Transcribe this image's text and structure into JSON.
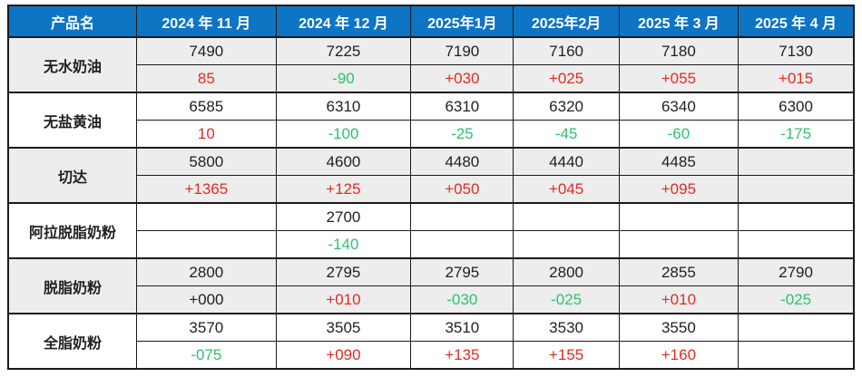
{
  "colors": {
    "header_bg": "#0e74c4",
    "header_text": "#ffffff",
    "band": "#ededed",
    "red": "#e02b22",
    "green": "#2fc170",
    "neutral": "#1f1f1f",
    "border": "#1a1a1a"
  },
  "table": {
    "product_header": "产品名",
    "months": [
      "2024 年 11 月",
      "2024 年 12 月",
      "2025年1月",
      "2025年2月",
      "2025 年 3 月",
      "2025 年 4 月"
    ],
    "products": [
      {
        "name": "无水奶油",
        "prices": [
          "7490",
          "7225",
          "7190",
          "7160",
          "7180",
          "7130"
        ],
        "changes": [
          {
            "text": "85",
            "color": "red"
          },
          {
            "text": "-90",
            "color": "green"
          },
          {
            "text": "+030",
            "color": "red"
          },
          {
            "text": "+025",
            "color": "red"
          },
          {
            "text": "+055",
            "color": "red"
          },
          {
            "text": "+015",
            "color": "red"
          }
        ]
      },
      {
        "name": "无盐黄油",
        "prices": [
          "6585",
          "6310",
          "6310",
          "6320",
          "6340",
          "6300"
        ],
        "changes": [
          {
            "text": "10",
            "color": "red"
          },
          {
            "text": "-100",
            "color": "green"
          },
          {
            "text": "-25",
            "color": "green"
          },
          {
            "text": "-45",
            "color": "green"
          },
          {
            "text": "-60",
            "color": "green"
          },
          {
            "text": "-175",
            "color": "green"
          }
        ]
      },
      {
        "name": "切达",
        "prices": [
          "5800",
          "4600",
          "4480",
          "4440",
          "4485",
          ""
        ],
        "changes": [
          {
            "text": "+1365",
            "color": "red"
          },
          {
            "text": "+125",
            "color": "red"
          },
          {
            "text": "+050",
            "color": "red"
          },
          {
            "text": "+045",
            "color": "red"
          },
          {
            "text": "+095",
            "color": "red"
          },
          {
            "text": "",
            "color": "neutral"
          }
        ]
      },
      {
        "name": "阿拉脱脂奶粉",
        "prices": [
          "",
          "2700",
          "",
          "",
          "",
          ""
        ],
        "changes": [
          {
            "text": "",
            "color": "neutral"
          },
          {
            "text": "-140",
            "color": "green"
          },
          {
            "text": "",
            "color": "neutral"
          },
          {
            "text": "",
            "color": "neutral"
          },
          {
            "text": "",
            "color": "neutral"
          },
          {
            "text": "",
            "color": "neutral"
          }
        ]
      },
      {
        "name": "脱脂奶粉",
        "prices": [
          "2800",
          "2795",
          "2795",
          "2800",
          "2855",
          "2790"
        ],
        "changes": [
          {
            "text": "+000",
            "color": "neutral"
          },
          {
            "text": "+010",
            "color": "red"
          },
          {
            "text": "-030",
            "color": "green"
          },
          {
            "text": "-025",
            "color": "green"
          },
          {
            "text": "+010",
            "color": "red"
          },
          {
            "text": "-025",
            "color": "green"
          }
        ]
      },
      {
        "name": "全脂奶粉",
        "prices": [
          "3570",
          "3505",
          "3510",
          "3530",
          "3550",
          ""
        ],
        "changes": [
          {
            "text": "-075",
            "color": "green"
          },
          {
            "text": "+090",
            "color": "red"
          },
          {
            "text": "+135",
            "color": "red"
          },
          {
            "text": "+155",
            "color": "red"
          },
          {
            "text": "+160",
            "color": "red"
          },
          {
            "text": "",
            "color": "neutral"
          }
        ]
      }
    ]
  }
}
